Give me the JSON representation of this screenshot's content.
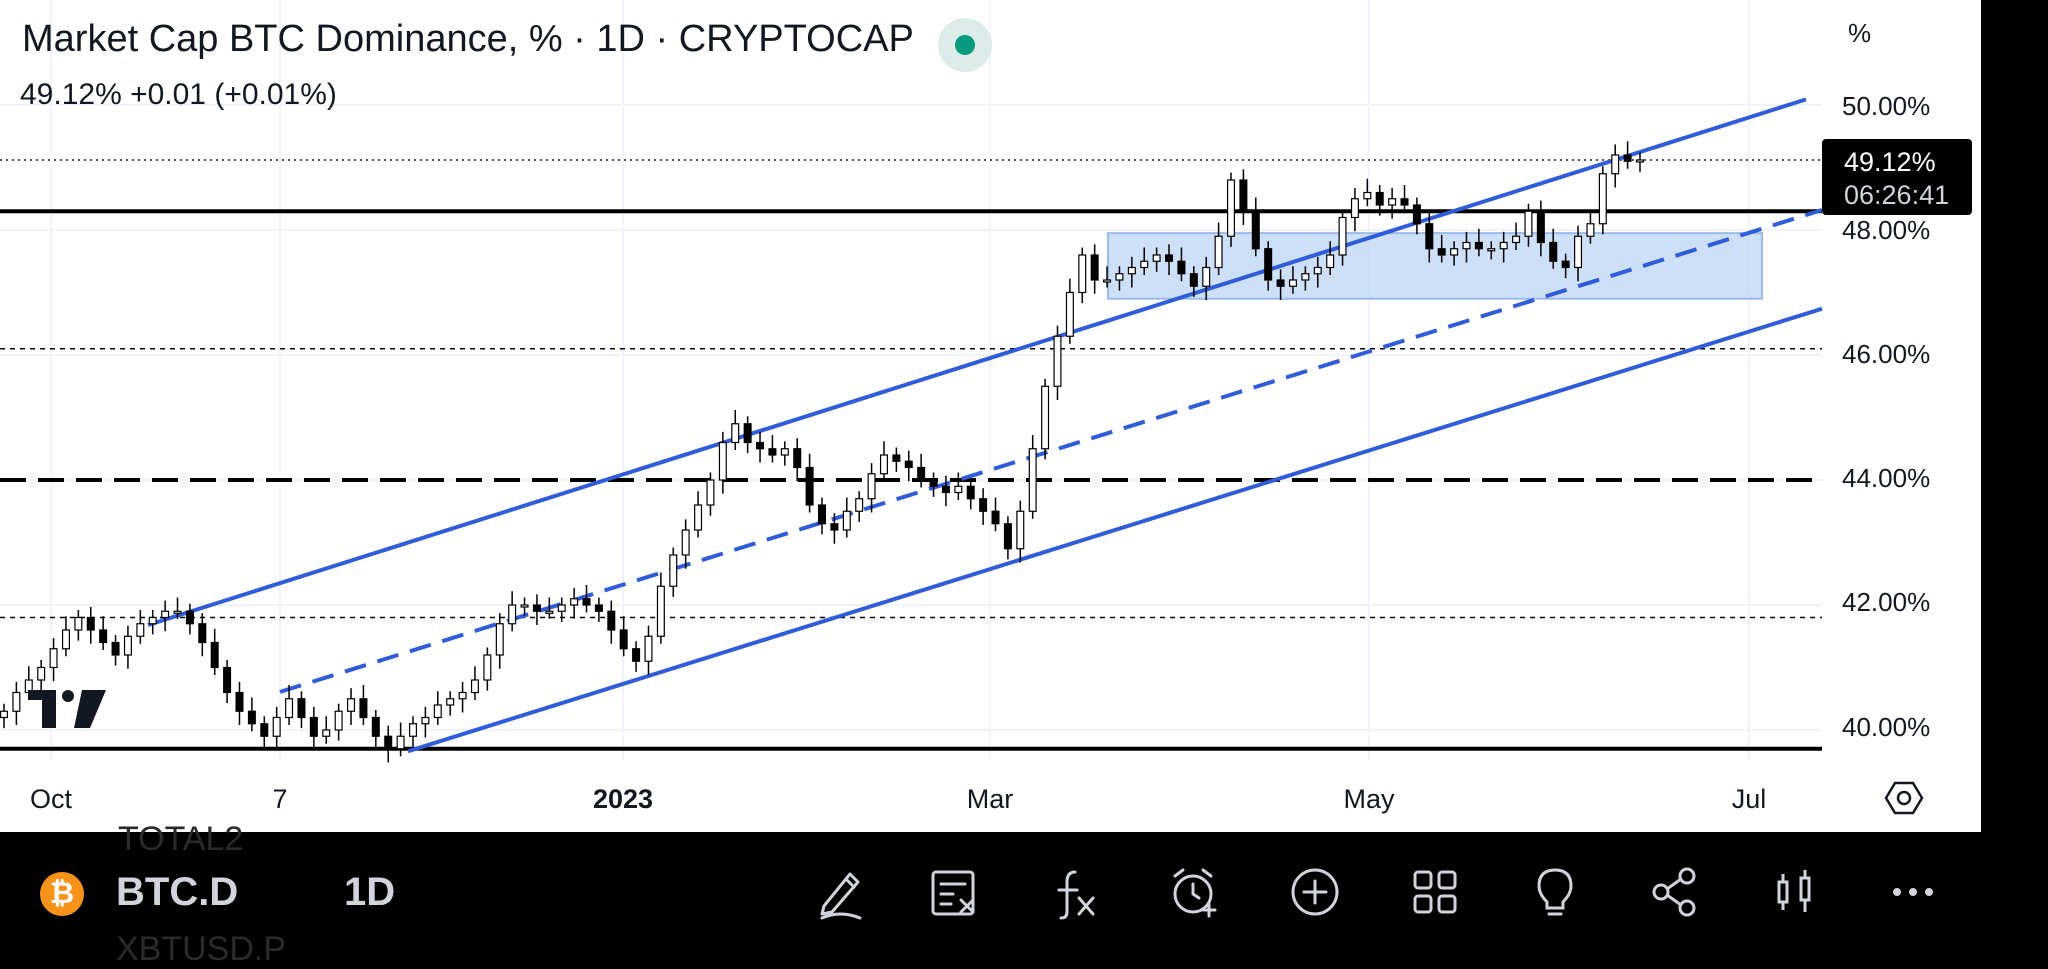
{
  "header": {
    "title": "Market Cap BTC Dominance, % · 1D · CRYPTOCAP",
    "legend": "49.12%  +0.01 (+0.01%)",
    "status_color": "#089981"
  },
  "price_scale": {
    "unit": "%",
    "labels": [
      "50.00%",
      "48.00%",
      "46.00%",
      "44.00%",
      "42.00%",
      "40.00%"
    ],
    "last_price": "49.12%",
    "countdown": "06:26:41"
  },
  "time_scale": {
    "labels": [
      "Oct",
      "7",
      "2023",
      "Mar",
      "May",
      "Jul"
    ],
    "bold": "2023"
  },
  "chart_data": {
    "type": "candlestick",
    "symbol": "BTC.D",
    "interval": "1D",
    "ylim": [
      39.6,
      51.5
    ],
    "last": 49.12,
    "grid": true,
    "channel_color": "#2f5cd8",
    "zone_color": "#bcd6f5",
    "horizontal_levels": [
      {
        "value": 48.3,
        "style": "solid"
      },
      {
        "value": 46.1,
        "style": "dotted"
      },
      {
        "value": 44.0,
        "style": "dashed"
      },
      {
        "value": 41.8,
        "style": "dotted"
      },
      {
        "value": 39.7,
        "style": "solid"
      }
    ],
    "closes": [
      40.3,
      40.6,
      40.8,
      41.0,
      41.3,
      41.6,
      41.8,
      41.6,
      41.4,
      41.2,
      41.5,
      41.7,
      41.8,
      41.9,
      41.9,
      41.7,
      41.4,
      41.0,
      40.6,
      40.3,
      40.1,
      39.9,
      40.2,
      40.5,
      40.2,
      39.9,
      40.0,
      40.3,
      40.5,
      40.2,
      39.9,
      39.7,
      39.9,
      40.1,
      40.2,
      40.4,
      40.5,
      40.6,
      40.8,
      41.2,
      41.7,
      42.0,
      42.0,
      41.9,
      41.9,
      42.0,
      42.1,
      42.0,
      41.9,
      41.6,
      41.3,
      41.1,
      41.5,
      42.3,
      42.8,
      43.2,
      43.6,
      44.0,
      44.6,
      44.9,
      44.6,
      44.5,
      44.4,
      44.5,
      44.2,
      43.6,
      43.3,
      43.2,
      43.5,
      43.7,
      44.1,
      44.4,
      44.3,
      44.2,
      44.0,
      43.9,
      43.8,
      43.9,
      43.7,
      43.5,
      43.3,
      42.9,
      43.5,
      44.5,
      45.5,
      46.3,
      47.0,
      47.6,
      47.2,
      47.2,
      47.3,
      47.4,
      47.5,
      47.6,
      47.5,
      47.3,
      47.1,
      47.4,
      47.9,
      48.8,
      48.3,
      47.7,
      47.2,
      47.1,
      47.2,
      47.3,
      47.4,
      47.6,
      48.2,
      48.5,
      48.6,
      48.4,
      48.5,
      48.4,
      48.1,
      47.7,
      47.6,
      47.7,
      47.8,
      47.7,
      47.7,
      47.8,
      47.9,
      48.3,
      47.8,
      47.5,
      47.4,
      47.9,
      48.1,
      48.9,
      49.2,
      49.1,
      49.12
    ]
  }
}
